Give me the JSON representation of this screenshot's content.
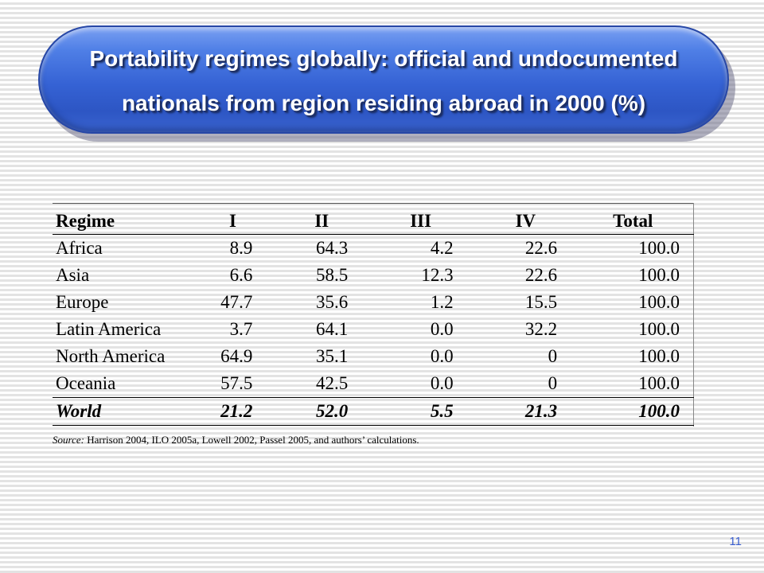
{
  "slide": {
    "title_line1": "Portability regimes globally: official and undocumented",
    "title_line2": "nationals from region residing abroad in 2000 (%)",
    "page_number": "11"
  },
  "table": {
    "headers": [
      "Regime",
      "I",
      "II",
      "III",
      "IV",
      "Total"
    ],
    "rows": [
      {
        "region": "Africa",
        "I": "8.9",
        "II": "64.3",
        "III": "4.2",
        "IV": "22.6",
        "Total": "100.0"
      },
      {
        "region": "Asia",
        "I": "6.6",
        "II": "58.5",
        "III": "12.3",
        "IV": "22.6",
        "Total": "100.0"
      },
      {
        "region": "Europe",
        "I": "47.7",
        "II": "35.6",
        "III": "1.2",
        "IV": "15.5",
        "Total": "100.0"
      },
      {
        "region": "Latin America",
        "I": "3.7",
        "II": "64.1",
        "III": "0.0",
        "IV": "32.2",
        "Total": "100.0"
      },
      {
        "region": "North America",
        "I": "64.9",
        "II": "35.1",
        "III": "0.0",
        "IV": "0",
        "Total": "100.0"
      },
      {
        "region": "Oceania",
        "I": "57.5",
        "II": "42.5",
        "III": "0.0",
        "IV": "0",
        "Total": "100.0"
      },
      {
        "region": "World",
        "I": "21.2",
        "II": "52.0",
        "III": "5.5",
        "IV": "21.3",
        "Total": "100.0"
      }
    ]
  },
  "source": {
    "label": "Source:",
    "text": " Harrison 2004, ILO 2005a, Lowell 2002, Passel 2005, and authors’ calculations."
  },
  "colors": {
    "banner": "#3562d4",
    "page_number": "#3b5fd0"
  }
}
